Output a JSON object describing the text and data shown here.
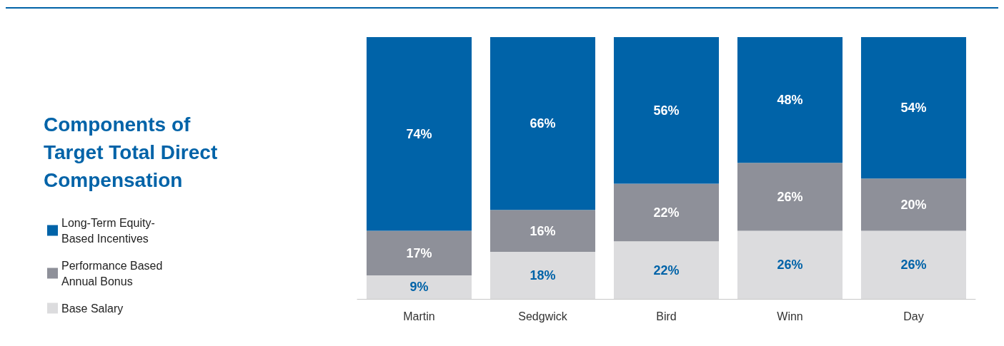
{
  "chart_data": {
    "type": "bar",
    "stacked": true,
    "title": "Components of Target Total Direct Compensation",
    "categories": [
      "Martin",
      "Sedgwick",
      "Bird",
      "Winn",
      "Day"
    ],
    "ylim": [
      0,
      100
    ],
    "legend": "left",
    "tick_labels": "x",
    "series": [
      {
        "name": "Base Salary",
        "color": "#dcdcde",
        "values": [
          9,
          18,
          22,
          26,
          26
        ],
        "value_labels": [
          "9%",
          "18%",
          "22%",
          "26%",
          "26%"
        ]
      },
      {
        "name": "Performance Based\nAnnual Bonus",
        "color": "#8e9099",
        "values": [
          17,
          16,
          22,
          26,
          20
        ],
        "value_labels": [
          "17%",
          "16%",
          "22%",
          "26%",
          "20%"
        ]
      },
      {
        "name": "Long-Term Equity-\nBased Incentives",
        "color": "#0063a8",
        "values": [
          74,
          66,
          56,
          48,
          54
        ],
        "value_labels": [
          "74%",
          "66%",
          "56%",
          "48%",
          "54%"
        ]
      }
    ]
  }
}
